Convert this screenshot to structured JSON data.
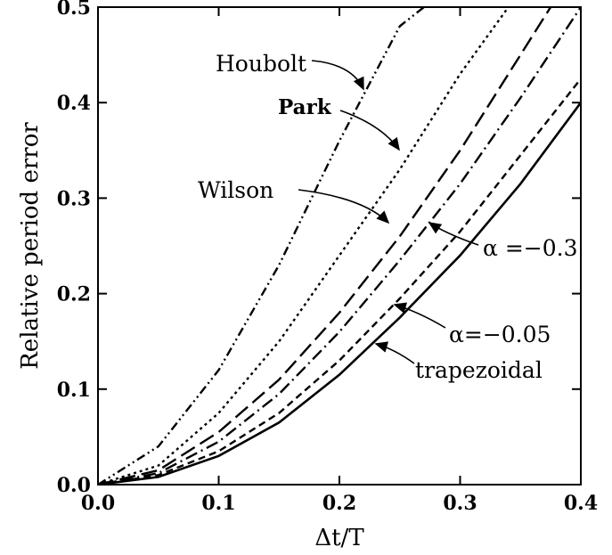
{
  "chart_data": {
    "type": "line",
    "xlabel": "Δt/T",
    "ylabel": "Relative period error",
    "xlim": [
      0,
      0.4
    ],
    "ylim": [
      0,
      0.5
    ],
    "xticks": [
      "0.0",
      "0.1",
      "0.2",
      "0.3",
      "0.4"
    ],
    "yticks": [
      "0.0",
      "0.1",
      "0.2",
      "0.3",
      "0.4",
      "0.5"
    ],
    "grid": false,
    "series": [
      {
        "name": "Houbolt",
        "style": "dash-dot-dot",
        "x": [
          0,
          0.05,
          0.1,
          0.15,
          0.2,
          0.25,
          0.27
        ],
        "y": [
          0,
          0.04,
          0.12,
          0.23,
          0.36,
          0.48,
          0.5
        ]
      },
      {
        "name": "Park",
        "style": "dotted",
        "x": [
          0,
          0.05,
          0.1,
          0.15,
          0.2,
          0.25,
          0.3,
          0.34
        ],
        "y": [
          0,
          0.02,
          0.075,
          0.15,
          0.24,
          0.33,
          0.43,
          0.5
        ]
      },
      {
        "name": "Wilson",
        "style": "long-dash",
        "x": [
          0,
          0.05,
          0.1,
          0.15,
          0.2,
          0.25,
          0.3,
          0.35,
          0.375
        ],
        "y": [
          0,
          0.015,
          0.055,
          0.11,
          0.18,
          0.26,
          0.35,
          0.45,
          0.5
        ]
      },
      {
        "name": "α=−0.3",
        "style": "dash-dot",
        "x": [
          0,
          0.05,
          0.1,
          0.15,
          0.2,
          0.25,
          0.3,
          0.35,
          0.4
        ],
        "y": [
          0,
          0.012,
          0.045,
          0.095,
          0.16,
          0.235,
          0.315,
          0.405,
          0.5
        ]
      },
      {
        "name": "α=−0.05",
        "style": "short-dash",
        "x": [
          0,
          0.05,
          0.1,
          0.15,
          0.2,
          0.25,
          0.3,
          0.35,
          0.4
        ],
        "y": [
          0,
          0.01,
          0.035,
          0.075,
          0.13,
          0.195,
          0.265,
          0.345,
          0.425
        ]
      },
      {
        "name": "trapezoidal",
        "style": "solid",
        "x": [
          0,
          0.05,
          0.1,
          0.15,
          0.2,
          0.25,
          0.3,
          0.35,
          0.4
        ],
        "y": [
          0,
          0.008,
          0.03,
          0.065,
          0.115,
          0.175,
          0.24,
          0.315,
          0.4
        ]
      }
    ],
    "annotations": [
      {
        "text": "Houbolt",
        "x": 0.23,
        "y": 0.41
      },
      {
        "text": "Park",
        "x": 0.25,
        "y": 0.365
      },
      {
        "text": "Wilson",
        "x": 0.24,
        "y": 0.27
      },
      {
        "text": "α =−0.3",
        "x": 0.28,
        "y": 0.28
      },
      {
        "text": "α=−0.05",
        "x": 0.245,
        "y": 0.175
      },
      {
        "text": "trapezoidal",
        "x": 0.23,
        "y": 0.145
      }
    ]
  }
}
